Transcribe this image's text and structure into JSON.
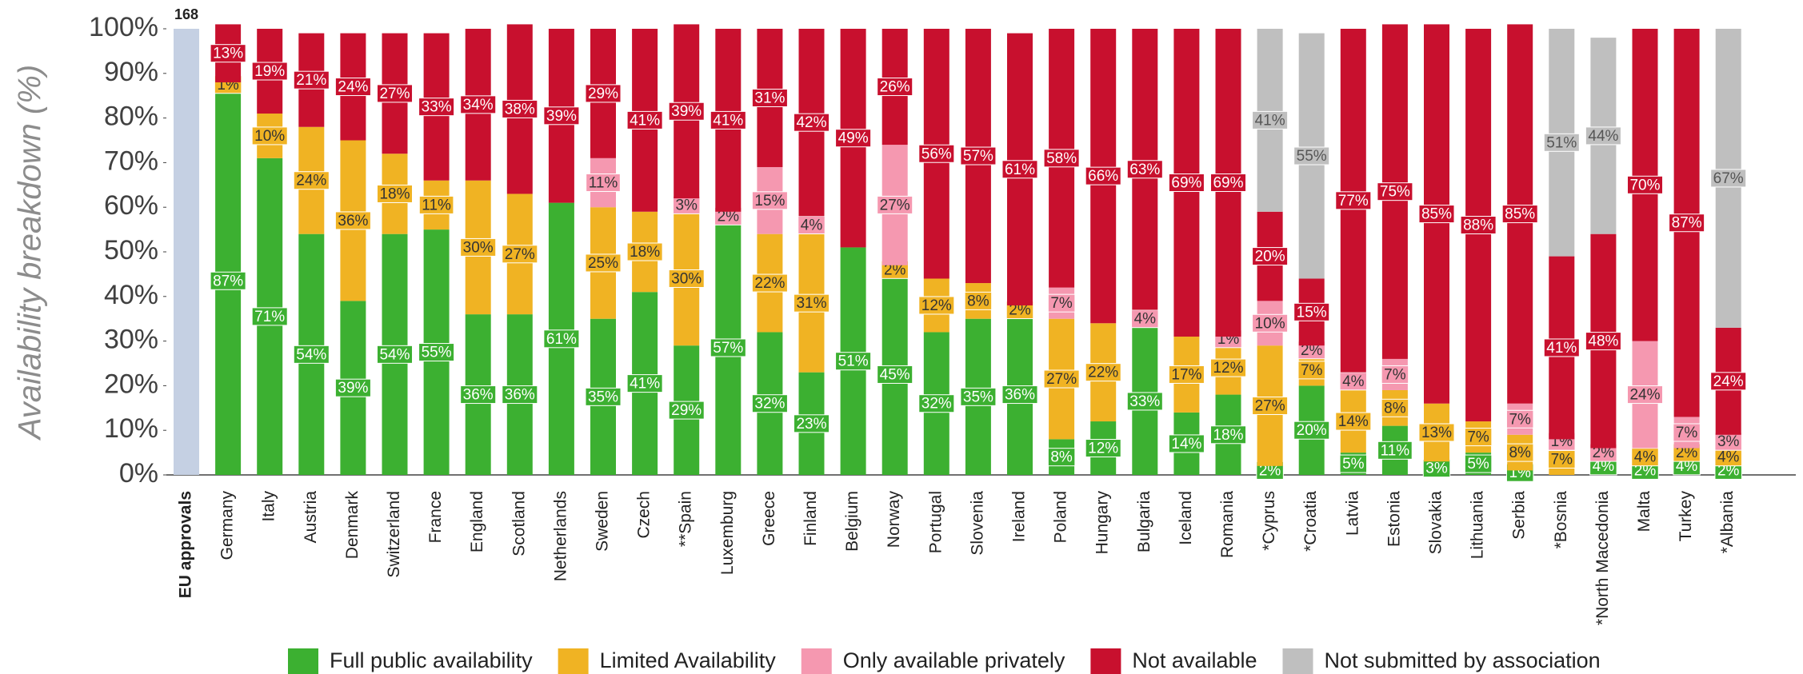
{
  "chart_data": {
    "type": "stacked_bar",
    "ylabel": "Availability breakdown (%)",
    "ylim": [
      0,
      100
    ],
    "yticks": [
      {
        "value": 0,
        "label": "0%"
      },
      {
        "value": 10,
        "label": "10%"
      },
      {
        "value": 20,
        "label": "20%"
      },
      {
        "value": 30,
        "label": "30%"
      },
      {
        "value": 40,
        "label": "40%"
      },
      {
        "value": 50,
        "label": "50%"
      },
      {
        "value": 60,
        "label": "60%"
      },
      {
        "value": 70,
        "label": "70%"
      },
      {
        "value": 80,
        "label": "80%"
      },
      {
        "value": 90,
        "label": "90%"
      },
      {
        "value": 100,
        "label": "100%"
      }
    ],
    "reference_bar": {
      "category": "EU approvals",
      "value": 100,
      "annotation": "168",
      "color": "#c5d0e3"
    },
    "categories": [
      "Germany",
      "Italy",
      "Austria",
      "Denmark",
      "Switzerland",
      "France",
      "England",
      "Scotland",
      "Netherlands",
      "Sweden",
      "Czech",
      "**Spain",
      "Luxemburg",
      "Greece",
      "Finland",
      "Belgium",
      "Norway",
      "Portugal",
      "Slovenia",
      "Ireland",
      "Poland",
      "Hungary",
      "Bulgaria",
      "Iceland",
      "Romania",
      "*Cyprus",
      "*Croatia",
      "Latvia",
      "Estonia",
      "Slovakia",
      "Lithuania",
      "Serbia",
      "*Bosnia",
      "*North Macedonia",
      "Malta",
      "Turkey",
      "*Albania"
    ],
    "series": [
      {
        "name": "Full public availability",
        "color": "#3cb031",
        "text_color": "#ffffff",
        "values": [
          87,
          71,
          54,
          39,
          54,
          55,
          36,
          36,
          61,
          35,
          41,
          29,
          57,
          32,
          23,
          51,
          45,
          32,
          35,
          36,
          8,
          12,
          33,
          14,
          18,
          2,
          20,
          5,
          11,
          3,
          5,
          1,
          null,
          4,
          2,
          4,
          2
        ],
        "value_labels": [
          "87%",
          "71%",
          "54%",
          "39%",
          "54%",
          "55%",
          "36%",
          "36%",
          "61%",
          "35%",
          "41%",
          "29%",
          "57%",
          "32%",
          "23%",
          "51%",
          "45%",
          "32%",
          "35%",
          "36%",
          "8%",
          "12%",
          "33%",
          "14%",
          "18%",
          "2%",
          "20%",
          "5%",
          "11%",
          "3%",
          "5%",
          "1%",
          null,
          "4%",
          "2%",
          "4%",
          "2%"
        ]
      },
      {
        "name": "Limited Availability",
        "color": "#f0b323",
        "text_color": "#333333",
        "values": [
          1,
          10,
          24,
          36,
          18,
          11,
          30,
          27,
          null,
          25,
          18,
          30,
          null,
          22,
          31,
          null,
          2,
          12,
          8,
          2,
          27,
          22,
          null,
          17,
          12,
          27,
          7,
          14,
          8,
          13,
          7,
          8,
          7,
          null,
          4,
          2,
          4
        ],
        "value_labels": [
          "1%",
          "10%",
          "24%",
          "36%",
          "18%",
          "11%",
          "30%",
          "27%",
          null,
          "25%",
          "18%",
          "30%",
          null,
          "22%",
          "31%",
          null,
          "2%",
          "12%",
          "8%",
          "2%",
          "27%",
          "22%",
          null,
          "17%",
          "12%",
          "27%",
          "7%",
          "14%",
          "8%",
          "13%",
          "7%",
          "8%",
          "7%",
          null,
          "4%",
          "2%",
          "4%"
        ]
      },
      {
        "name": "Only available privately",
        "color": "#f598b0",
        "text_color": "#333333",
        "values": [
          null,
          null,
          null,
          null,
          null,
          null,
          null,
          null,
          null,
          11,
          null,
          3,
          2,
          15,
          4,
          null,
          27,
          null,
          null,
          null,
          7,
          null,
          4,
          null,
          1,
          10,
          2,
          4,
          7,
          null,
          null,
          7,
          1,
          2,
          24,
          7,
          3
        ],
        "value_labels": [
          null,
          null,
          null,
          null,
          null,
          null,
          null,
          null,
          null,
          "11%",
          null,
          "3%",
          "2%",
          "15%",
          "4%",
          null,
          "27%",
          null,
          null,
          null,
          "7%",
          null,
          "4%",
          null,
          "1%",
          "10%",
          "2%",
          "4%",
          "7%",
          null,
          null,
          "7%",
          "1%",
          "2%",
          "24%",
          "7%",
          "3%"
        ]
      },
      {
        "name": "Not available",
        "color": "#c8102e",
        "text_color": "#ffffff",
        "values": [
          13,
          19,
          21,
          24,
          27,
          33,
          34,
          38,
          39,
          29,
          41,
          39,
          41,
          31,
          42,
          49,
          26,
          56,
          57,
          61,
          58,
          66,
          63,
          69,
          69,
          20,
          15,
          77,
          75,
          85,
          88,
          85,
          41,
          48,
          70,
          87,
          24
        ],
        "value_labels": [
          "13%",
          "19%",
          "21%",
          "24%",
          "27%",
          "33%",
          "34%",
          "38%",
          "39%",
          "29%",
          "41%",
          "39%",
          "41%",
          "31%",
          "42%",
          "49%",
          "26%",
          "56%",
          "57%",
          "61%",
          "58%",
          "66%",
          "63%",
          "69%",
          "69%",
          "20%",
          "15%",
          "77%",
          "75%",
          "85%",
          "88%",
          "85%",
          "41%",
          "48%",
          "70%",
          "87%",
          "24%"
        ]
      },
      {
        "name": "Not submitted by association",
        "color": "#bfbfbf",
        "text_color": "#555555",
        "values": [
          null,
          null,
          null,
          null,
          null,
          null,
          null,
          null,
          null,
          null,
          null,
          null,
          null,
          null,
          null,
          null,
          null,
          null,
          null,
          null,
          null,
          null,
          null,
          null,
          null,
          41,
          55,
          null,
          null,
          null,
          null,
          null,
          51,
          44,
          null,
          null,
          67
        ],
        "value_labels": [
          null,
          null,
          null,
          null,
          null,
          null,
          null,
          null,
          null,
          null,
          null,
          null,
          null,
          null,
          null,
          null,
          null,
          null,
          null,
          null,
          null,
          null,
          null,
          null,
          null,
          "41%",
          "55%",
          null,
          null,
          null,
          null,
          null,
          "51%",
          "44%",
          null,
          null,
          "67%"
        ]
      }
    ]
  }
}
